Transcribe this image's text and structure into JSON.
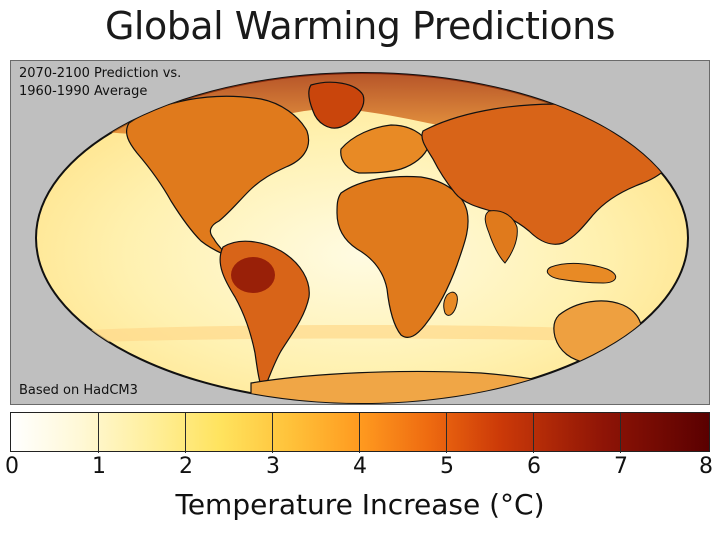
{
  "title": "Global Warming Predictions",
  "map": {
    "note_top": "2070-2100 Prediction vs. 1960-1990 Average",
    "note_bottom": "Based on HadCM3",
    "projection": "mollweide",
    "colors": {
      "background": "#bfbfbf",
      "ocean_light": "#fff3b0",
      "land_warm": "#e07a1c",
      "land_hot": "#b8360a",
      "polar_hot": "#9e2406",
      "coastline": "#111111"
    }
  },
  "colorbar": {
    "ticks": [
      "0",
      "1",
      "2",
      "3",
      "4",
      "5",
      "6",
      "7",
      "8"
    ],
    "range": [
      0,
      8
    ],
    "label": "Temperature Increase (°C)",
    "colors": [
      "#ffffff",
      "#fff8d6",
      "#ffef9c",
      "#ffe35e",
      "#ffc23a",
      "#ff9a1f",
      "#ee6a10",
      "#cc3a08",
      "#8e1406",
      "#5a0000"
    ]
  }
}
